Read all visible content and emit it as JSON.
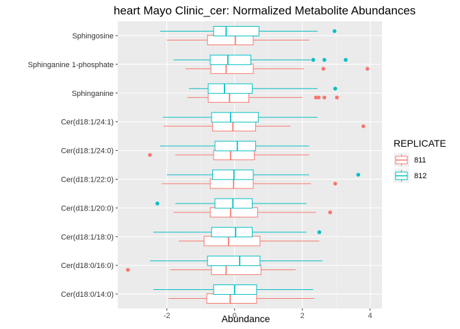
{
  "chart_data": {
    "type": "boxplot",
    "orientation": "horizontal",
    "title": "heart Mayo Clinic_cer: Normalized Metabolite Abundances",
    "xlabel": "Abundance",
    "ylabel": "",
    "xlim": [
      -3.45,
      4.35
    ],
    "xticks": [
      -2,
      0,
      2,
      4
    ],
    "xtick_labels": [
      "-2",
      "0",
      "2",
      "4"
    ],
    "grid": true,
    "legend": {
      "title": "REPLICATE",
      "placement": "right",
      "entries": [
        {
          "label": "811",
          "color": "#F8766D"
        },
        {
          "label": "812",
          "color": "#00BFC4"
        }
      ]
    },
    "categories": [
      "Sphingosine",
      "Sphinganine 1-phosphate",
      "Sphinganine",
      "Cer(d18:1/24:1)",
      "Cer(d18:1/24:0)",
      "Cer(d18:1/22:0)",
      "Cer(d18:1/20:0)",
      "Cer(d18:1/18:0)",
      "Cer(d18:0/16:0)",
      "Cer(d18:0/14:0)"
    ],
    "series": [
      {
        "name": "811",
        "color": "#F8766D",
        "boxes": [
          {
            "min": -2.0,
            "q1": -0.8,
            "median": 0.02,
            "q3": 0.55,
            "max": 2.2,
            "outliers": []
          },
          {
            "min": -1.45,
            "q1": -0.7,
            "median": -0.25,
            "q3": 0.55,
            "max": 2.05,
            "outliers": [
              2.62,
              3.92
            ]
          },
          {
            "min": -1.4,
            "q1": -0.78,
            "median": -0.15,
            "q3": 0.42,
            "max": 2.0,
            "outliers": [
              2.4,
              2.48,
              2.65,
              3.02
            ]
          },
          {
            "min": -2.1,
            "q1": -0.65,
            "median": -0.05,
            "q3": 0.62,
            "max": 1.65,
            "outliers": [
              3.8
            ]
          },
          {
            "min": -1.75,
            "q1": -0.62,
            "median": -0.12,
            "q3": 0.58,
            "max": 2.2,
            "outliers": [
              -2.5
            ]
          },
          {
            "min": -2.15,
            "q1": -0.72,
            "median": -0.03,
            "q3": 0.55,
            "max": 2.25,
            "outliers": [
              2.97
            ]
          },
          {
            "min": -1.8,
            "q1": -0.72,
            "median": -0.12,
            "q3": 0.68,
            "max": 2.4,
            "outliers": [
              2.82
            ]
          },
          {
            "min": -1.65,
            "q1": -0.9,
            "median": -0.18,
            "q3": 0.75,
            "max": 2.5,
            "outliers": []
          },
          {
            "min": -1.9,
            "q1": -0.68,
            "median": -0.25,
            "q3": 0.78,
            "max": 1.8,
            "outliers": [
              -3.15
            ]
          },
          {
            "min": -1.95,
            "q1": -0.82,
            "median": -0.13,
            "q3": 0.65,
            "max": 2.35,
            "outliers": []
          }
        ]
      },
      {
        "name": "812",
        "color": "#00BFC4",
        "boxes": [
          {
            "min": -2.2,
            "q1": -0.62,
            "median": -0.25,
            "q3": 0.72,
            "max": 2.45,
            "outliers": [
              2.95
            ]
          },
          {
            "min": -1.8,
            "q1": -0.72,
            "median": -0.2,
            "q3": 0.48,
            "max": 2.25,
            "outliers": [
              2.32,
              2.65,
              3.28
            ]
          },
          {
            "min": -1.35,
            "q1": -0.78,
            "median": -0.3,
            "q3": 0.52,
            "max": 2.45,
            "outliers": [
              2.97
            ]
          },
          {
            "min": -2.12,
            "q1": -0.68,
            "median": -0.12,
            "q3": 0.7,
            "max": 2.45,
            "outliers": []
          },
          {
            "min": -2.2,
            "q1": -0.58,
            "median": 0.08,
            "q3": 0.62,
            "max": 2.2,
            "outliers": []
          },
          {
            "min": -2.0,
            "q1": -0.65,
            "median": -0.02,
            "q3": 0.55,
            "max": 2.2,
            "outliers": [
              3.65
            ]
          },
          {
            "min": -1.75,
            "q1": -0.58,
            "median": -0.05,
            "q3": 0.52,
            "max": 2.12,
            "outliers": [
              -2.28
            ]
          },
          {
            "min": -2.4,
            "q1": -0.68,
            "median": 0.03,
            "q3": 0.52,
            "max": 2.12,
            "outliers": [
              2.5
            ]
          },
          {
            "min": -2.5,
            "q1": -0.8,
            "median": 0.15,
            "q3": 0.75,
            "max": 2.6,
            "outliers": []
          },
          {
            "min": -2.4,
            "q1": -0.62,
            "median": 0.0,
            "q3": 0.65,
            "max": 2.32,
            "outliers": []
          }
        ]
      }
    ]
  }
}
